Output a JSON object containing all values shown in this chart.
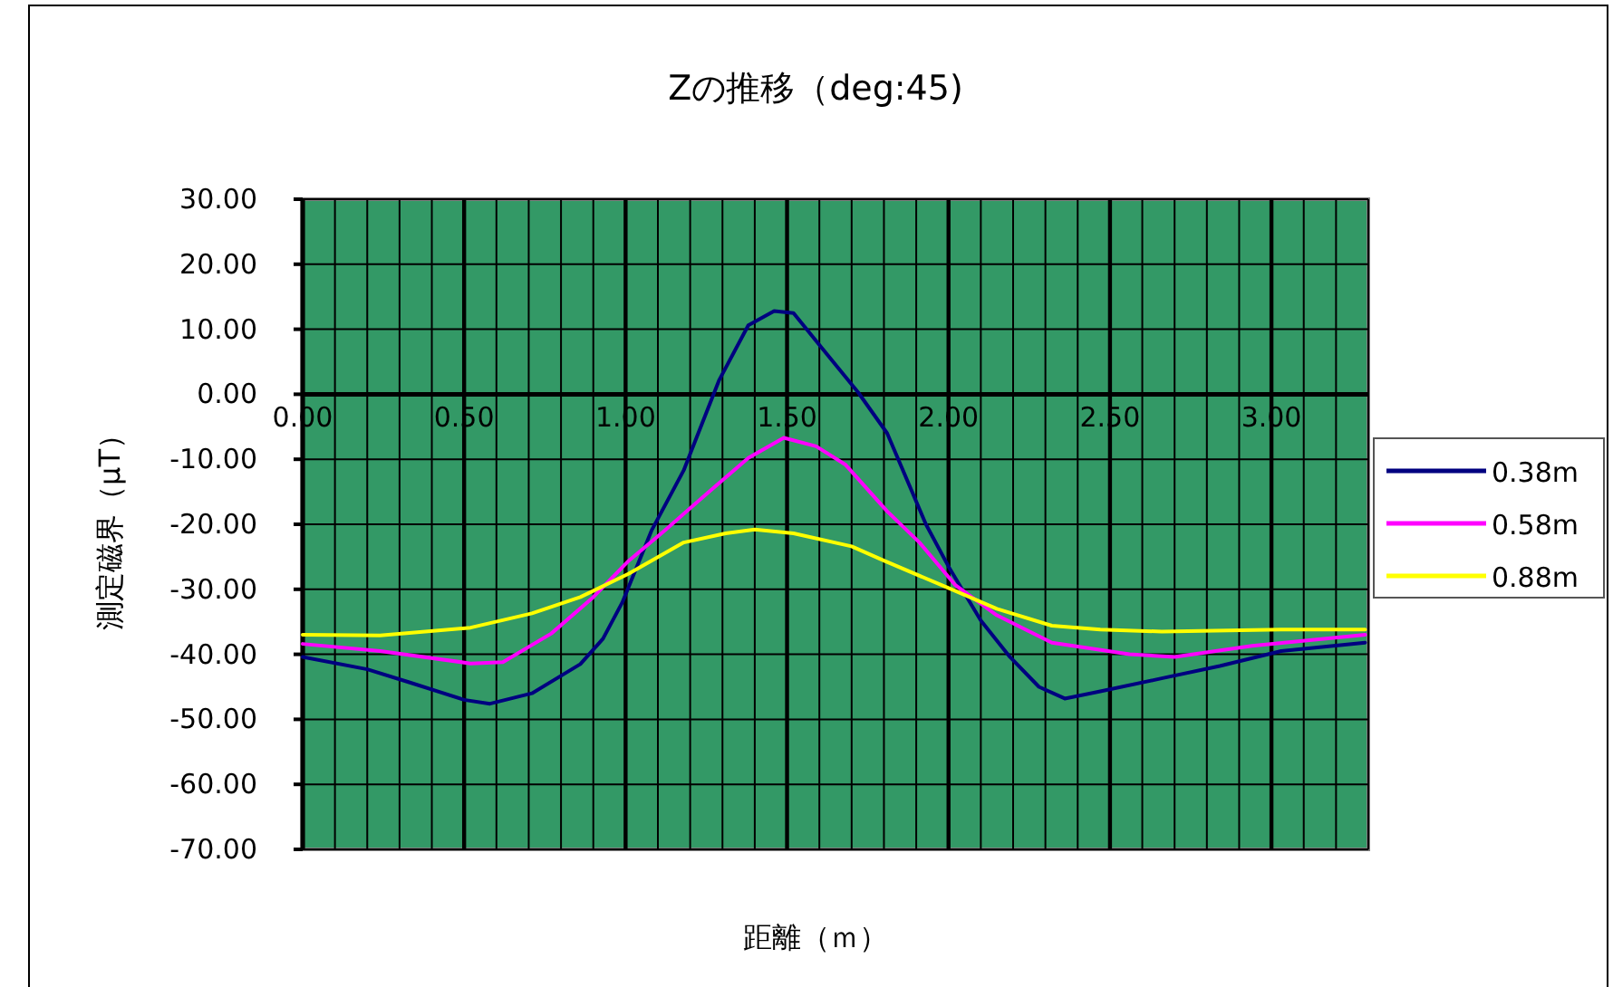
{
  "chart_data": {
    "type": "line",
    "title": "Zの推移（deg:45)",
    "xlabel": "距離（ｍ）",
    "ylabel": "測定磁界（μT）",
    "xlim": [
      0,
      3.3
    ],
    "ylim": [
      -70,
      30
    ],
    "xticks": [
      {
        "value": 0,
        "label": "0.00"
      },
      {
        "value": 0.5,
        "label": "0.50"
      },
      {
        "value": 1,
        "label": "1.00"
      },
      {
        "value": 1.5,
        "label": "1.50"
      },
      {
        "value": 2,
        "label": "2.00"
      },
      {
        "value": 2.5,
        "label": "2.50"
      },
      {
        "value": 3,
        "label": "3.00"
      }
    ],
    "yticks": [
      {
        "value": 30,
        "label": "30.00"
      },
      {
        "value": 20,
        "label": "20.00"
      },
      {
        "value": 10,
        "label": "10.00"
      },
      {
        "value": 0,
        "label": "0.00"
      },
      {
        "value": -10,
        "label": "-10.00"
      },
      {
        "value": -20,
        "label": "-20.00"
      },
      {
        "value": -30,
        "label": "-30.00"
      },
      {
        "value": -40,
        "label": "-40.00"
      },
      {
        "value": -50,
        "label": "-50.00"
      },
      {
        "value": -60,
        "label": "-60.00"
      },
      {
        "value": -70,
        "label": "-70.00"
      }
    ],
    "grid": true,
    "legend": "right",
    "marker": "none",
    "line_style": "solid",
    "series": [
      {
        "name": "0.38m",
        "color": "#000080",
        "x": [
          0,
          0.2,
          0.33,
          0.5,
          0.58,
          0.71,
          0.86,
          0.93,
          0.99,
          1.08,
          1.18,
          1.29,
          1.38,
          1.46,
          1.52,
          1.61,
          1.72,
          1.81,
          1.93,
          2.0,
          2.1,
          2.19,
          2.28,
          2.36,
          2.47,
          2.66,
          2.84,
          3.03,
          3.29
        ],
        "values": [
          -40.4,
          -42.3,
          -44.3,
          -47,
          -47.6,
          -46,
          -41.5,
          -37.6,
          -32,
          -21,
          -11.7,
          2.2,
          10.6,
          12.8,
          12.5,
          7,
          0.3,
          -6,
          -20,
          -26.5,
          -34.8,
          -40.4,
          -45,
          -46.8,
          -45.7,
          -43.7,
          -41.8,
          -39.5,
          -38.2
        ]
      },
      {
        "name": "0.58m",
        "color": "#ff00ff",
        "x": [
          0,
          0.24,
          0.52,
          0.62,
          0.77,
          0.9,
          1.01,
          1.12,
          1.27,
          1.38,
          1.49,
          1.59,
          1.68,
          1.81,
          1.91,
          2.02,
          2.15,
          2.32,
          2.56,
          2.7,
          2.94,
          3.29
        ],
        "values": [
          -38.4,
          -39.5,
          -41.4,
          -41.2,
          -36.8,
          -31.2,
          -25.6,
          -21,
          -14.5,
          -9.8,
          -6.7,
          -8,
          -10.8,
          -18,
          -22.8,
          -29.3,
          -34,
          -38.2,
          -40,
          -40.4,
          -38.7,
          -37
        ]
      },
      {
        "name": "0.88m",
        "color": "#ffff00",
        "x": [
          0,
          0.24,
          0.52,
          0.71,
          0.86,
          1.01,
          1.18,
          1.31,
          1.4,
          1.52,
          1.7,
          1.8,
          2.0,
          2.15,
          2.32,
          2.47,
          2.66,
          3.03,
          3.29
        ],
        "values": [
          -37,
          -37.1,
          -35.9,
          -33.7,
          -31.2,
          -27.6,
          -22.8,
          -21.4,
          -20.8,
          -21.4,
          -23.4,
          -25.6,
          -29.8,
          -33,
          -35.6,
          -36.2,
          -36.5,
          -36.2,
          -36.2
        ]
      }
    ]
  }
}
